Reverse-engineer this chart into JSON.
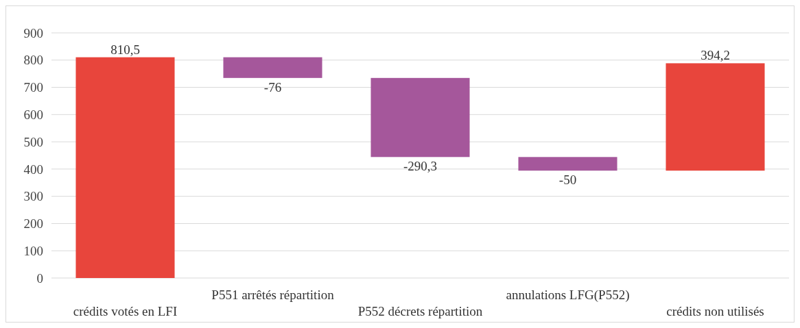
{
  "chart_data": {
    "type": "bar",
    "categories": [
      "crédits votés en LFI",
      "P551 arrêtés répartition",
      "P552 décrets répartition",
      "annulations LFG(P552)",
      "crédits non utilisés"
    ],
    "values": [
      810.5,
      -76,
      -290.3,
      -50,
      394.2
    ],
    "base": [
      0,
      810.5,
      734.5,
      444.2,
      394.2
    ],
    "colors": [
      "#e8453c",
      "#a5579b",
      "#a5579b",
      "#a5579b",
      "#e8453c"
    ],
    "value_labels": [
      "810,5",
      "-76",
      "-290,3",
      "-50",
      "394,2"
    ],
    "ylim": [
      0,
      900
    ],
    "yticks": [
      0,
      100,
      200,
      300,
      400,
      500,
      600,
      700,
      800,
      900
    ],
    "grid": "y"
  }
}
